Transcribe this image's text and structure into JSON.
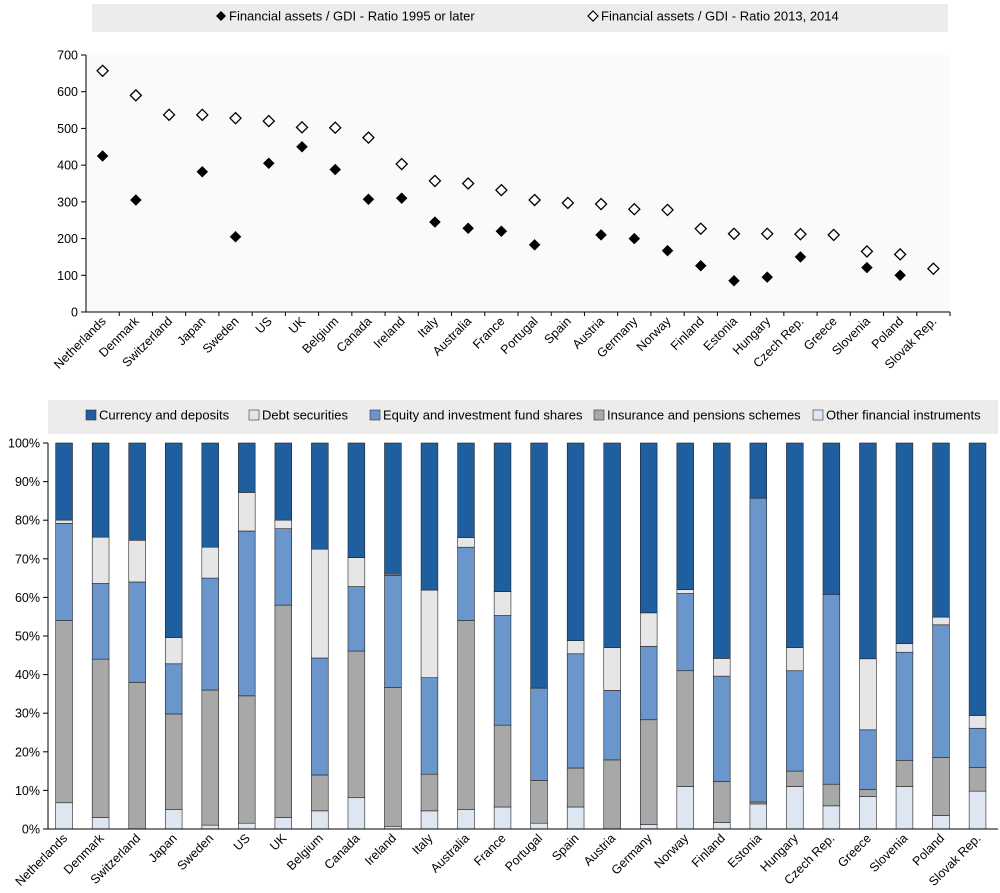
{
  "colors": {
    "legend_bg": "#eeecea",
    "plot_bg": "#fbfaf9",
    "axis": "#000000",
    "currency": "#1f5fa0",
    "debt": "#e6e6e6",
    "equity": "#6a96cb",
    "insurance": "#a8a8a8",
    "other": "#dde6f1",
    "bar_stroke": "#222222"
  },
  "chart_data": [
    {
      "type": "scatter",
      "legend_placement": "top",
      "ylim": [
        0,
        700
      ],
      "yticks": [
        0,
        100,
        200,
        300,
        400,
        500,
        600,
        700
      ],
      "grid": false,
      "categories": [
        "Netherlands",
        "Denmark",
        "Switzerland",
        "Japan",
        "Sweden",
        "US",
        "UK",
        "Belgium",
        "Canada",
        "Ireland",
        "Italy",
        "Australia",
        "France",
        "Portugal",
        "Spain",
        "Austria",
        "Germany",
        "Norway",
        "Finland",
        "Estonia",
        "Hungary",
        "Czech Rep.",
        "Greece",
        "Slovenia",
        "Poland",
        "Slovak Rep."
      ],
      "series": [
        {
          "name": "Financial assets / GDI - Ratio 1995 or later",
          "marker": "filled-diamond",
          "values": [
            425,
            305,
            null,
            382,
            205,
            405,
            450,
            388,
            307,
            310,
            245,
            228,
            220,
            183,
            null,
            210,
            200,
            167,
            126,
            85,
            95,
            150,
            null,
            121,
            100,
            117
          ]
        },
        {
          "name": "Financial assets / GDI - Ratio 2013, 2014",
          "marker": "hollow-diamond",
          "values": [
            657,
            590,
            537,
            537,
            528,
            520,
            503,
            502,
            475,
            403,
            357,
            350,
            332,
            305,
            297,
            294,
            280,
            278,
            227,
            213,
            213,
            212,
            210,
            165,
            157,
            118
          ]
        }
      ]
    },
    {
      "type": "bar",
      "stacked": true,
      "legend_placement": "top",
      "ylim": [
        0,
        100
      ],
      "yticks": [
        "0%",
        "10%",
        "20%",
        "30%",
        "40%",
        "50%",
        "60%",
        "70%",
        "80%",
        "90%",
        "100%"
      ],
      "grid": false,
      "categories": [
        "Netherlands",
        "Denmark",
        "Switzerland",
        "Japan",
        "Sweden",
        "US",
        "UK",
        "Belgium",
        "Canada",
        "Ireland",
        "Italy",
        "Australia",
        "France",
        "Portugal",
        "Spain",
        "Austria",
        "Germany",
        "Norway",
        "Finland",
        "Estonia",
        "Hungary",
        "Czech Rep.",
        "Greece",
        "Slovenia",
        "Poland",
        "Slovak Rep."
      ],
      "series": [
        {
          "name": "Other financial instruments",
          "values": [
            6.8,
            3.0,
            0,
            5.0,
            1.0,
            1.5,
            3.0,
            4.7,
            8.1,
            0.7,
            4.7,
            5.0,
            5.7,
            1.5,
            5.7,
            0,
            1.2,
            11.0,
            1.7,
            6.5,
            11.0,
            6.0,
            8.4,
            11.0,
            3.5,
            9.8
          ]
        },
        {
          "name": "Insurance and pensions schemes",
          "values": [
            47.2,
            41.0,
            38.0,
            24.8,
            35.0,
            33.0,
            55.0,
            9.3,
            38.0,
            36.0,
            9.5,
            49.0,
            21.2,
            11.1,
            10.1,
            17.9,
            27.1,
            30.0,
            10.6,
            0.5,
            4.0,
            5.6,
            1.8,
            6.8,
            15.0,
            6.1
          ]
        },
        {
          "name": "Equity and investment fund shares",
          "values": [
            25.2,
            19.6,
            26.0,
            13.0,
            29.0,
            42.7,
            19.8,
            30.3,
            16.7,
            29.0,
            25.0,
            19.0,
            28.4,
            23.9,
            29.6,
            18.0,
            19.0,
            20.0,
            27.3,
            78.7,
            26.0,
            49.2,
            15.5,
            28.0,
            34.4,
            10.2
          ]
        },
        {
          "name": "Debt securities",
          "values": [
            0.8,
            12.0,
            10.8,
            6.8,
            8.0,
            10.0,
            2.2,
            28.2,
            7.5,
            0.3,
            22.7,
            2.5,
            6.2,
            0,
            3.4,
            11.1,
            8.7,
            1.0,
            4.6,
            0,
            6.0,
            0,
            18.4,
            2.2,
            2.0,
            3.3
          ]
        },
        {
          "name": "Currency and deposits",
          "values": [
            20.0,
            24.4,
            25.2,
            50.4,
            27.0,
            12.8,
            20.0,
            27.5,
            29.7,
            34.0,
            38.1,
            24.5,
            38.5,
            63.5,
            51.2,
            53.0,
            44.0,
            38.0,
            55.8,
            14.3,
            53.0,
            39.2,
            55.9,
            52.0,
            45.1,
            70.6
          ]
        }
      ],
      "legend_order": [
        "Currency and deposits",
        "Debt securities",
        "Equity and investment fund shares",
        "Insurance and pensions schemes",
        "Other financial instruments"
      ]
    }
  ]
}
